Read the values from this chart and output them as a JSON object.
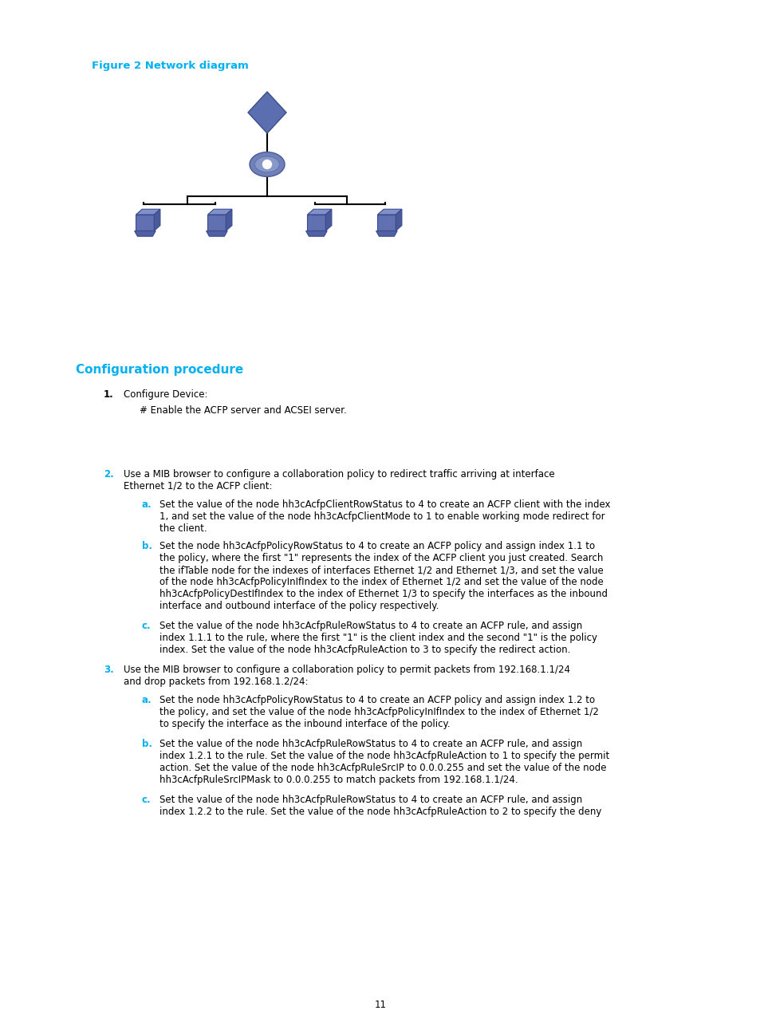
{
  "bg_color": "#ffffff",
  "figure_label": "Figure 2 Network diagram",
  "figure_label_color": "#00b0f0",
  "figure_label_fontsize": 9.5,
  "section_title": "Configuration procedure",
  "section_title_color": "#00b0f0",
  "section_title_fontsize": 11,
  "body_fontsize": 8.5,
  "body_color": "#000000",
  "cyan_color": "#00b0f0",
  "page_number": "11",
  "items": [
    {
      "num": "1.",
      "num_color": "#000000",
      "text": "Configure Device:",
      "sub": [
        {
          "text": "# Enable the ACFP server and ACSEI server."
        }
      ]
    },
    {
      "num": "2.",
      "num_color": "#00b0f0",
      "text": "Use a MIB browser to configure a collaboration policy to redirect traffic arriving at interface\nEthernet 1/2 to the ACFP client:",
      "sub": [
        {
          "label": "a.",
          "text": "Set the value of the node hh3cAcfpClientRowStatus to 4 to create an ACFP client with the index\n1, and set the value of the node hh3cAcfpClientMode to 1 to enable working mode redirect for\nthe client."
        },
        {
          "label": "b.",
          "text": "Set the node hh3cAcfpPolicyRowStatus to 4 to create an ACFP policy and assign index 1.1 to\nthe policy, where the first \"1\" represents the index of the ACFP client you just created. Search\nthe ifTable node for the indexes of interfaces Ethernet 1/2 and Ethernet 1/3, and set the value\nof the node hh3cAcfpPolicyInIfIndex to the index of Ethernet 1/2 and set the value of the node\nhh3cAcfpPolicyDestIfIndex to the index of Ethernet 1/3 to specify the interfaces as the inbound\ninterface and outbound interface of the policy respectively."
        },
        {
          "label": "c.",
          "text": "Set the value of the node hh3cAcfpRuleRowStatus to 4 to create an ACFP rule, and assign\nindex 1.1.1 to the rule, where the first \"1\" is the client index and the second \"1\" is the policy\nindex. Set the value of the node hh3cAcfpRuleAction to 3 to specify the redirect action."
        }
      ]
    },
    {
      "num": "3.",
      "num_color": "#00b0f0",
      "text": "Use the MIB browser to configure a collaboration policy to permit packets from 192.168.1.1/24\nand drop packets from 192.168.1.2/24:",
      "sub": [
        {
          "label": "a.",
          "text": "Set the node hh3cAcfpPolicyRowStatus to 4 to create an ACFP policy and assign index 1.2 to\nthe policy, and set the value of the node hh3cAcfpPolicyInIfIndex to the index of Ethernet 1/2\nto specify the interface as the inbound interface of the policy."
        },
        {
          "label": "b.",
          "text": "Set the value of the node hh3cAcfpRuleRowStatus to 4 to create an ACFP rule, and assign\nindex 1.2.1 to the rule. Set the value of the node hh3cAcfpRuleAction to 1 to specify the permit\naction. Set the value of the node hh3cAcfpRuleSrcIP to 0.0.0.255 and set the value of the node\nhh3cAcfpRuleSrcIPMask to 0.0.0.255 to match packets from 192.168.1.1/24."
        },
        {
          "label": "c.",
          "text": "Set the value of the node hh3cAcfpRuleRowStatus to 4 to create an ACFP rule, and assign\nindex 1.2.2 to the rule. Set the value of the node hh3cAcfpRuleAction to 2 to specify the deny"
        }
      ]
    }
  ]
}
